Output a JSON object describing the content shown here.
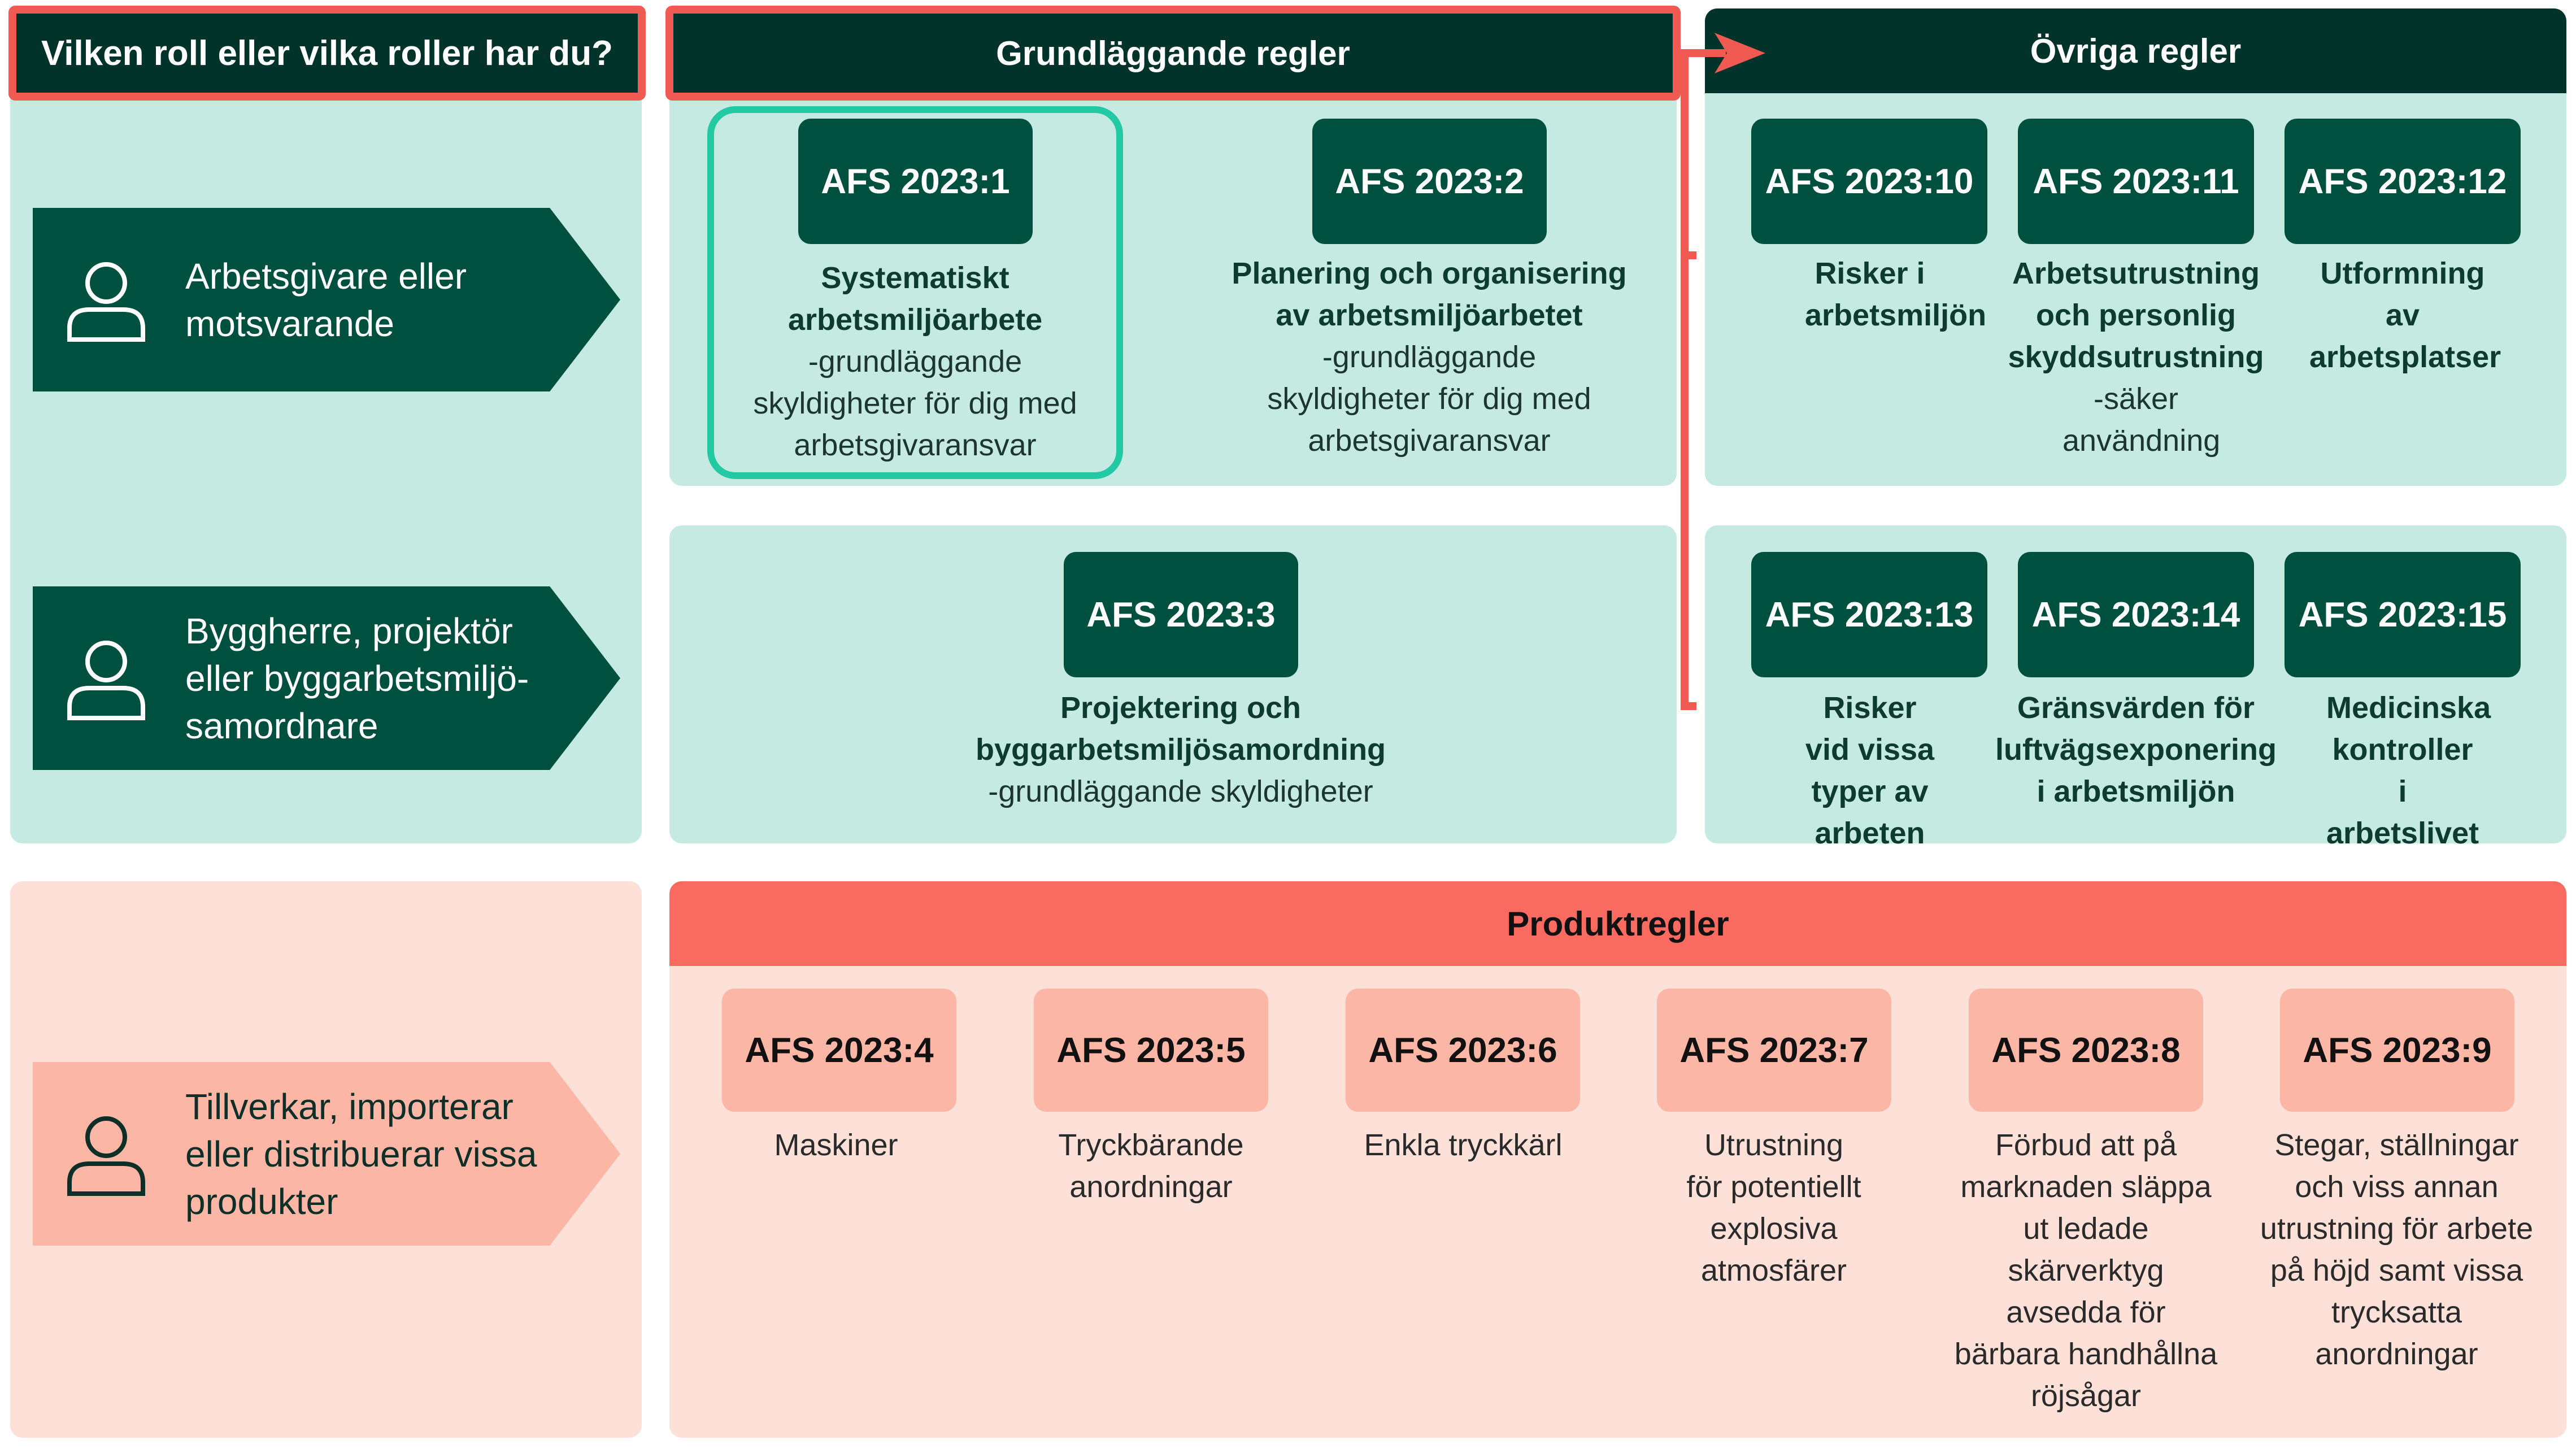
{
  "question": "Vilken roll eller vilka roller har du?",
  "roles": [
    {
      "icon": "person-icon",
      "label": "Arbetsgivare eller motsvarande"
    },
    {
      "icon": "person-icon",
      "label": "Byggherre, projektör eller byggarbetsmiljö-samordnare"
    },
    {
      "icon": "person-icon",
      "label": "Tillverkar, importerar eller distribuerar vissa produkter"
    }
  ],
  "grundlaggande": {
    "title": "Grundläggande regler",
    "items": [
      {
        "code": "AFS 2023:1",
        "title": "Systematiskt arbetsmiljöarbete",
        "note": "-grundläggande skyldigheter för dig med arbetsgivaransvar"
      },
      {
        "code": "AFS 2023:2",
        "title": "Planering och organisering av arbetsmiljöarbetet",
        "note": "-grundläggande skyldigheter för dig med arbetsgivaransvar"
      },
      {
        "code": "AFS 2023:3",
        "title": "Projektering och byggarbetsmiljösamordning",
        "note": "-grundläggande skyldigheter"
      }
    ]
  },
  "ovriga": {
    "title": "Övriga regler",
    "items": [
      {
        "code": "AFS 2023:10",
        "title": "Risker i arbetsmiljön",
        "note": ""
      },
      {
        "code": "AFS 2023:11",
        "title": "Arbetsutrustning och personlig skyddsutrustning",
        "note": "-säker användning"
      },
      {
        "code": "AFS 2023:12",
        "title": "Utformning av arbetsplatser",
        "note": ""
      },
      {
        "code": "AFS 2023:13",
        "title": "Risker vid vissa typer av arbeten",
        "note": ""
      },
      {
        "code": "AFS 2023:14",
        "title": "Gränsvärden för luftvägsexponering i arbetsmiljön",
        "note": ""
      },
      {
        "code": "AFS 2023:15",
        "title": "Medicinska kontroller i arbetslivet",
        "note": ""
      }
    ]
  },
  "produkt": {
    "title": "Produktregler",
    "items": [
      {
        "code": "AFS 2023:4",
        "desc": "Maskiner"
      },
      {
        "code": "AFS 2023:5",
        "desc": "Tryckbärande anordningar"
      },
      {
        "code": "AFS 2023:6",
        "desc": "Enkla tryckkärl"
      },
      {
        "code": "AFS 2023:7",
        "desc": "Utrustning för potentiellt explosiva atmosfärer"
      },
      {
        "code": "AFS 2023:8",
        "desc": "Förbud att på marknaden släppa ut ledade skärverktyg avsedda för bärbara handhållna röjsågar"
      },
      {
        "code": "AFS 2023:9",
        "desc": "Stegar, ställningar och viss annan utrustning för arbete på höjd samt vissa trycksatta anordningar"
      }
    ]
  },
  "colors": {
    "dark_green": "#005040",
    "header_dark": "#01332a",
    "light_teal": "#c4eae1",
    "highlight_teal": "#22c9a2",
    "coral": "#f96b60",
    "salmon": "#fbb6a6",
    "light_pink": "#fde0d7",
    "red_outline": "#f05a52"
  }
}
